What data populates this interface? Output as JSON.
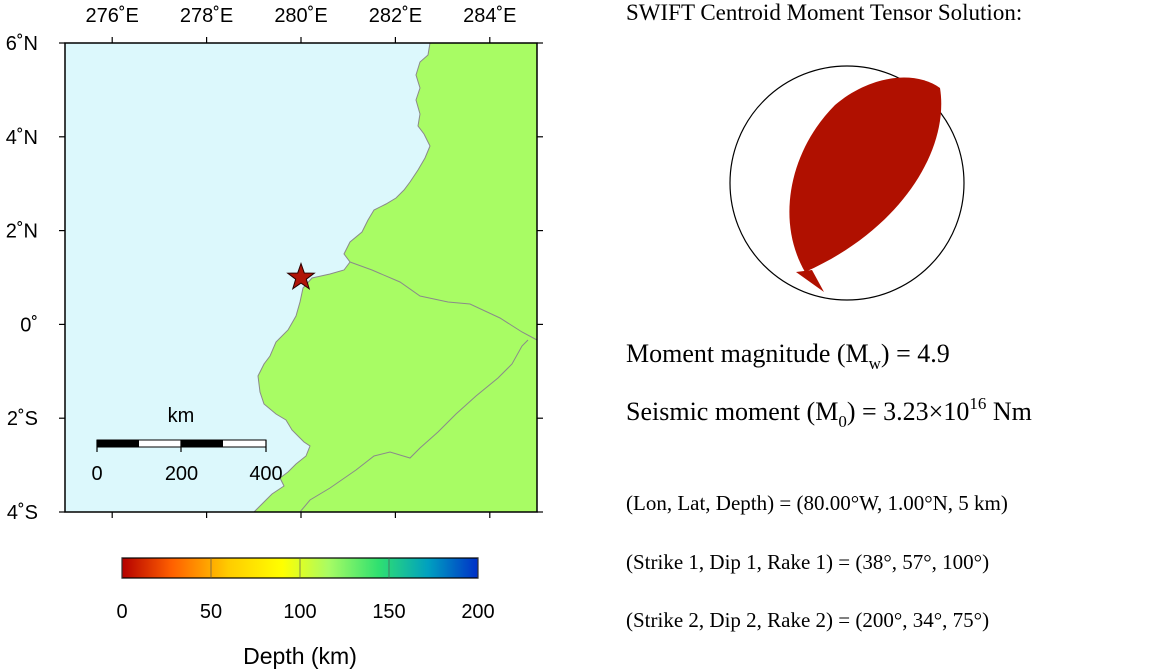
{
  "map": {
    "lon_ticks": [
      {
        "lon": 276,
        "label": "276˚E"
      },
      {
        "lon": 278,
        "label": "278˚E"
      },
      {
        "lon": 280,
        "label": "280˚E"
      },
      {
        "lon": 282,
        "label": "282˚E"
      },
      {
        "lon": 284,
        "label": "284˚E"
      }
    ],
    "lat_ticks": [
      {
        "lat": 6,
        "label": "6˚N"
      },
      {
        "lat": 4,
        "label": "4˚N"
      },
      {
        "lat": 2,
        "label": "2˚N"
      },
      {
        "lat": 0,
        "label": "0˚"
      },
      {
        "lat": -2,
        "label": "2˚S"
      },
      {
        "lat": -4,
        "label": "4˚S"
      }
    ],
    "lon_range": [
      275,
      285
    ],
    "lat_range": [
      -4,
      6
    ],
    "ocean_color": "#dcf8fc",
    "land_color": "#a8fc64",
    "epicenter": {
      "lon": 280.0,
      "lat": 1.0,
      "symbol": "star-icon",
      "color": "#b01408"
    },
    "scale_bar": {
      "unit": "km",
      "labels": [
        "0",
        "200",
        "400"
      ],
      "label_values_km": [
        0,
        200,
        400
      ]
    }
  },
  "depth_colorbar": {
    "labels": [
      "0",
      "50",
      "100",
      "150",
      "200"
    ],
    "values_km": [
      0,
      50,
      100,
      150,
      200
    ],
    "title": "Depth (km)",
    "colors": [
      "#b40000",
      "#ff6000",
      "#ffcc00",
      "#ffff00",
      "#a8fc64",
      "#30e070",
      "#00a0c0",
      "#0030c8"
    ]
  },
  "solution": {
    "title": "SWIFT Centroid Moment Tensor Solution:",
    "beachball_color": "#b01000",
    "mw_prefix": "Moment magnitude (M",
    "mw_sub": "w",
    "mw_suffix": ") = 4.9",
    "m0_prefix": "Seismic moment (M",
    "m0_sub": "0",
    "m0_mid": ") = 3.23×10",
    "m0_sup": "16",
    "m0_suffix": " Nm",
    "location": "(Lon, Lat, Depth) = (80.00°W, 1.00°N, 5 km)",
    "plane1": "(Strike 1, Dip 1, Rake 1) = (38°, 57°, 100°)",
    "plane2": "(Strike 2, Dip 2, Rake 2) = (200°, 34°, 75°)"
  }
}
